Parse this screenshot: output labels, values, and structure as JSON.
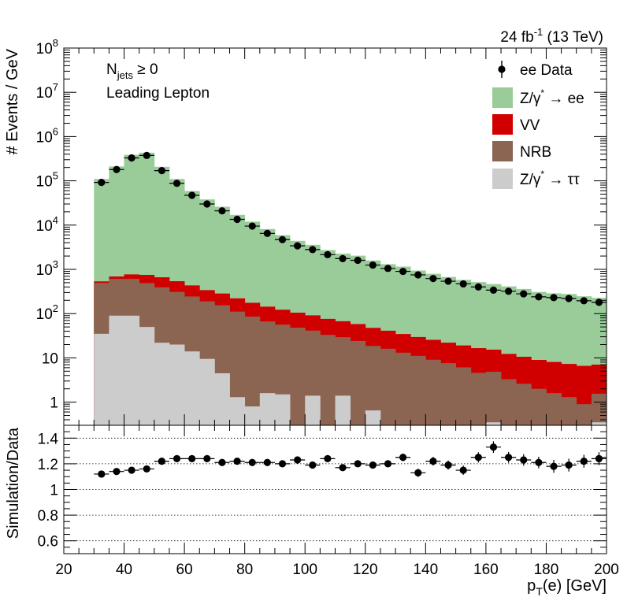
{
  "chart_data": {
    "type": "histogram",
    "lumi": {
      "value": "24 fb",
      "sup": "-1",
      "tail": " (13 TeV)"
    },
    "annotations": {
      "njets": {
        "main": "N",
        "sub": "jets",
        "rest": " ≥ 0"
      },
      "selection": "Leading Lepton"
    },
    "xlabel": {
      "main": "p",
      "sub": "T",
      "tail": "(e) [GeV]"
    },
    "xlim": [
      20,
      200
    ],
    "xticks": [
      "20",
      "40",
      "60",
      "80",
      "100",
      "120",
      "140",
      "160",
      "180",
      "200"
    ],
    "top": {
      "ylabel": "# Events / GeV",
      "yscale": "log",
      "ylim": [
        0.3,
        100000000
      ],
      "yticks": [
        {
          "base": "",
          "exp": "",
          "text": "1",
          "value": 1
        },
        {
          "base": "",
          "exp": "",
          "text": "10",
          "value": 10
        },
        {
          "base": "10",
          "exp": "2",
          "value": 100
        },
        {
          "base": "10",
          "exp": "3",
          "value": 1000
        },
        {
          "base": "10",
          "exp": "4",
          "value": 10000
        },
        {
          "base": "10",
          "exp": "5",
          "value": 100000
        },
        {
          "base": "10",
          "exp": "6",
          "value": 1000000
        },
        {
          "base": "10",
          "exp": "7",
          "value": 10000000
        },
        {
          "base": "10",
          "exp": "8",
          "value": 100000000
        }
      ],
      "bin_edges": [
        30,
        35,
        40,
        45,
        50,
        55,
        60,
        65,
        70,
        75,
        80,
        85,
        90,
        95,
        100,
        105,
        110,
        115,
        120,
        125,
        130,
        135,
        140,
        145,
        150,
        155,
        160,
        165,
        170,
        175,
        180,
        185,
        190,
        195,
        200
      ],
      "stack": [
        {
          "name": "Z/γ* → ττ",
          "legend": {
            "pre": "Z/γ",
            "sup": "*",
            "post": " → ττ"
          },
          "color": "#cccccc",
          "values": [
            35,
            90,
            90,
            50,
            22,
            20,
            14,
            9.5,
            4.5,
            1.3,
            0.8,
            1.6,
            1.5,
            0.1,
            1.4,
            0.1,
            1.4,
            0.1,
            0.65,
            0.1,
            0.1,
            0.1,
            0.1,
            0.1,
            0.1,
            0.1,
            0.35,
            0.1,
            0.1,
            0.1,
            0.1,
            0.1,
            0.1,
            0.35
          ]
        },
        {
          "name": "NRB",
          "legend": {
            "pre": "NRB",
            "sup": "",
            "post": ""
          },
          "color": "#8b6452",
          "values": [
            460,
            520,
            520,
            440,
            370,
            290,
            230,
            180,
            150,
            110,
            85,
            65,
            55,
            48,
            40,
            33,
            28,
            24,
            18,
            16,
            13,
            11,
            9,
            7.5,
            6,
            4.5,
            4.5,
            3.2,
            2.5,
            1.9,
            1.5,
            1.2,
            0.8,
            1.2
          ]
        },
        {
          "name": "VV",
          "legend": {
            "pre": "VV",
            "sup": "",
            "post": ""
          },
          "color": "#d00000",
          "values": [
            40,
            80,
            160,
            260,
            270,
            230,
            190,
            150,
            130,
            110,
            90,
            77,
            66,
            57,
            50,
            43,
            38,
            34,
            29,
            25,
            21.5,
            18.5,
            16.5,
            14.5,
            13,
            12,
            10.5,
            9,
            8,
            7,
            6.5,
            6,
            5.7,
            5.5
          ]
        },
        {
          "name": "Z/γ* → ee",
          "legend": {
            "pre": "Z/γ",
            "sup": "*",
            "post": " → ee"
          },
          "color": "#99cc99",
          "values": [
            109500,
            211000,
            386000,
            431000,
            207000,
            109500,
            58500,
            37700,
            25700,
            16800,
            11800,
            8000,
            5800,
            4300,
            3500,
            2650,
            2200,
            1980,
            1540,
            1270,
            1120,
            910,
            770,
            650,
            560,
            500,
            450,
            400,
            350,
            300,
            280,
            270,
            240,
            220
          ]
        }
      ],
      "data": {
        "name": "ee Data",
        "legend": "ee Data",
        "x": [
          32.5,
          37.5,
          42.5,
          47.5,
          52.5,
          57.5,
          62.5,
          67.5,
          72.5,
          77.5,
          82.5,
          87.5,
          92.5,
          97.5,
          102.5,
          107.5,
          112.5,
          117.5,
          122.5,
          127.5,
          132.5,
          137.5,
          142.5,
          147.5,
          152.5,
          157.5,
          162.5,
          167.5,
          172.5,
          177.5,
          182.5,
          187.5,
          192.5,
          197.5
        ],
        "y": [
          92000,
          180000,
          330000,
          375000,
          170000,
          88000,
          47000,
          30000,
          21000,
          13500,
          9500,
          6500,
          4700,
          3400,
          2800,
          2150,
          1750,
          1600,
          1250,
          1050,
          900,
          750,
          620,
          540,
          470,
          400,
          340,
          320,
          280,
          240,
          230,
          220,
          195,
          180
        ]
      }
    },
    "ratio": {
      "ylabel": "Simulation/Data",
      "ylim": [
        0.5,
        1.5
      ],
      "yticks": [
        "0.6",
        "0.8",
        "1",
        "1.2",
        "1.4"
      ],
      "gridlines": [
        0.6,
        0.8,
        1.0,
        1.2,
        1.4
      ],
      "values": [
        1.12,
        1.14,
        1.15,
        1.16,
        1.22,
        1.24,
        1.24,
        1.24,
        1.21,
        1.22,
        1.21,
        1.21,
        1.2,
        1.23,
        1.19,
        1.24,
        1.17,
        1.2,
        1.19,
        1.2,
        1.25,
        1.13,
        1.22,
        1.19,
        1.15,
        1.25,
        1.33,
        1.25,
        1.23,
        1.21,
        1.18,
        1.19,
        1.22,
        1.24
      ],
      "errors": [
        0.012,
        0.01,
        0.01,
        0.01,
        0.012,
        0.012,
        0.014,
        0.014,
        0.016,
        0.016,
        0.017,
        0.018,
        0.02,
        0.02,
        0.02,
        0.022,
        0.024,
        0.025,
        0.026,
        0.028,
        0.03,
        0.032,
        0.034,
        0.036,
        0.036,
        0.04,
        0.045,
        0.042,
        0.045,
        0.045,
        0.05,
        0.05,
        0.05,
        0.05
      ]
    }
  }
}
